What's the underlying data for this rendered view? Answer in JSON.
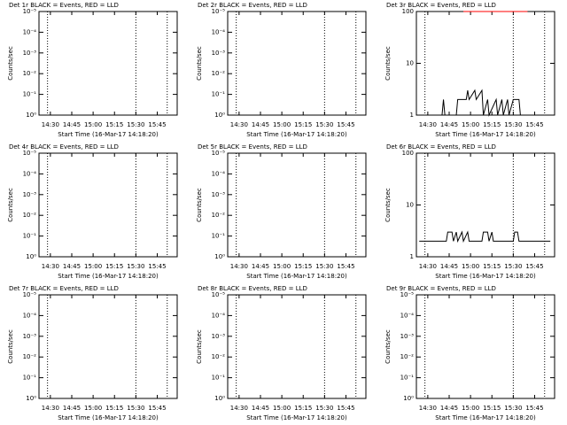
{
  "chart_data": [
    {
      "type": "line",
      "title": "Det 1r BLACK = Events, RED = LLD",
      "ylabel": "Counts/sec",
      "xlabel": "Start Time (16-Mar-17 14:18:20)",
      "xlim": [
        862,
        959
      ],
      "xticks": [
        {
          "value": 870,
          "label": "14:30"
        },
        {
          "value": 885,
          "label": "14:45"
        },
        {
          "value": 900,
          "label": "15:00"
        },
        {
          "value": 915,
          "label": "15:15"
        },
        {
          "value": 930,
          "label": "15:30"
        },
        {
          "value": 945,
          "label": "15:45"
        }
      ],
      "ylim": [
        1,
        1e-05
      ],
      "yticks": [
        {
          "value": 1,
          "label": "10⁰"
        },
        {
          "value": 0.1,
          "label": "10⁻¹"
        },
        {
          "value": 0.01,
          "label": "10⁻²"
        },
        {
          "value": 0.001,
          "label": "10⁻³"
        },
        {
          "value": 0.0001,
          "label": "10⁻⁴"
        },
        {
          "value": 1e-05,
          "label": "10⁻⁵"
        }
      ],
      "log_y": true,
      "markers": [
        868,
        930,
        952
      ],
      "series": []
    },
    {
      "type": "line",
      "title": "Det 2r BLACK = Events, RED = LLD",
      "ylabel": "Counts/sec",
      "xlabel": "Start Time (16-Mar-17 14:18:20)",
      "xlim": [
        862,
        959
      ],
      "xticks": [
        {
          "value": 870,
          "label": "14:30"
        },
        {
          "value": 885,
          "label": "14:45"
        },
        {
          "value": 900,
          "label": "15:00"
        },
        {
          "value": 915,
          "label": "15:15"
        },
        {
          "value": 930,
          "label": "15:30"
        },
        {
          "value": 945,
          "label": "15:45"
        }
      ],
      "ylim": [
        1,
        1e-05
      ],
      "yticks": [
        {
          "value": 1,
          "label": "10⁰"
        },
        {
          "value": 0.1,
          "label": "10⁻¹"
        },
        {
          "value": 0.01,
          "label": "10⁻²"
        },
        {
          "value": 0.001,
          "label": "10⁻³"
        },
        {
          "value": 0.0001,
          "label": "10⁻⁴"
        },
        {
          "value": 1e-05,
          "label": "10⁻⁵"
        }
      ],
      "log_y": true,
      "markers": [
        868,
        930,
        952
      ],
      "series": []
    },
    {
      "type": "line",
      "title": "Det 3r BLACK = Events, RED = LLD",
      "ylabel": "Counts/sec",
      "xlabel": "Start Time (16-Mar-17 14:18:20)",
      "xlim": [
        862,
        959
      ],
      "xticks": [
        {
          "value": 870,
          "label": "14:30"
        },
        {
          "value": 885,
          "label": "14:45"
        },
        {
          "value": 900,
          "label": "15:00"
        },
        {
          "value": 915,
          "label": "15:15"
        },
        {
          "value": 930,
          "label": "15:30"
        },
        {
          "value": 945,
          "label": "15:45"
        }
      ],
      "ylim": [
        1,
        100
      ],
      "yticks": [
        1,
        10,
        100
      ],
      "log_y": true,
      "markers": [
        868,
        930,
        952
      ],
      "series": [
        {
          "name": "LLD",
          "color": "#ff0000",
          "x": [
            895,
            940
          ],
          "values": [
            100,
            100
          ]
        },
        {
          "name": "Events",
          "color": "#000000",
          "x": [
            866,
            880,
            881,
            882,
            890,
            891,
            892,
            897,
            898,
            899,
            903,
            904,
            908,
            909,
            912,
            913,
            918,
            919,
            922,
            923,
            926,
            927,
            930,
            931,
            934,
            935,
            958
          ],
          "values": [
            1,
            1,
            2,
            1,
            1,
            2,
            2,
            2,
            3,
            2,
            3,
            2,
            3,
            1,
            2,
            1,
            2,
            1,
            2,
            1,
            2,
            1,
            2,
            2,
            2,
            1,
            1
          ]
        }
      ]
    },
    {
      "type": "line",
      "title": "Det 4r BLACK = Events, RED = LLD",
      "ylabel": "Counts/sec",
      "xlabel": "Start Time (16-Mar-17 14:18:20)",
      "xlim": [
        862,
        959
      ],
      "xticks": [
        {
          "value": 870,
          "label": "14:30"
        },
        {
          "value": 885,
          "label": "14:45"
        },
        {
          "value": 900,
          "label": "15:00"
        },
        {
          "value": 915,
          "label": "15:15"
        },
        {
          "value": 930,
          "label": "15:30"
        },
        {
          "value": 945,
          "label": "15:45"
        }
      ],
      "ylim": [
        1,
        1e-05
      ],
      "yticks": [
        {
          "value": 1,
          "label": "10⁰"
        },
        {
          "value": 0.1,
          "label": "10⁻¹"
        },
        {
          "value": 0.01,
          "label": "10⁻²"
        },
        {
          "value": 0.001,
          "label": "10⁻³"
        },
        {
          "value": 0.0001,
          "label": "10⁻⁴"
        },
        {
          "value": 1e-05,
          "label": "10⁻⁵"
        }
      ],
      "log_y": true,
      "markers": [
        868,
        930,
        952
      ],
      "series": []
    },
    {
      "type": "line",
      "title": "Det 5r BLACK = Events, RED = LLD",
      "ylabel": "Counts/sec",
      "xlabel": "Start Time (16-Mar-17 14:18:20)",
      "xlim": [
        862,
        959
      ],
      "xticks": [
        {
          "value": 870,
          "label": "14:30"
        },
        {
          "value": 885,
          "label": "14:45"
        },
        {
          "value": 900,
          "label": "15:00"
        },
        {
          "value": 915,
          "label": "15:15"
        },
        {
          "value": 930,
          "label": "15:30"
        },
        {
          "value": 945,
          "label": "15:45"
        }
      ],
      "ylim": [
        1,
        1e-05
      ],
      "yticks": [
        {
          "value": 1,
          "label": "10⁰"
        },
        {
          "value": 0.1,
          "label": "10⁻¹"
        },
        {
          "value": 0.01,
          "label": "10⁻²"
        },
        {
          "value": 0.001,
          "label": "10⁻³"
        },
        {
          "value": 0.0001,
          "label": "10⁻⁴"
        },
        {
          "value": 1e-05,
          "label": "10⁻⁵"
        }
      ],
      "log_y": true,
      "markers": [
        868,
        930,
        952
      ],
      "series": []
    },
    {
      "type": "line",
      "title": "Det 6r BLACK = Events, RED = LLD",
      "ylabel": "Counts/sec",
      "xlabel": "Start Time (16-Mar-17 14:18:20)",
      "xlim": [
        862,
        959
      ],
      "xticks": [
        {
          "value": 870,
          "label": "14:30"
        },
        {
          "value": 885,
          "label": "14:45"
        },
        {
          "value": 900,
          "label": "15:00"
        },
        {
          "value": 915,
          "label": "15:15"
        },
        {
          "value": 930,
          "label": "15:30"
        },
        {
          "value": 945,
          "label": "15:45"
        }
      ],
      "ylim": [
        1,
        100
      ],
      "yticks": [
        1,
        10,
        100
      ],
      "log_y": true,
      "markers": [
        868,
        930,
        952
      ],
      "series": [
        {
          "name": "Events",
          "color": "#000000",
          "x": [
            864,
            880,
            883,
            884,
            887,
            888,
            890,
            891,
            894,
            895,
            898,
            899,
            908,
            909,
            912,
            913,
            915,
            916,
            930,
            931,
            933,
            934,
            956
          ],
          "values": [
            2,
            2,
            2,
            3,
            3,
            2,
            3,
            2,
            3,
            2,
            3,
            2,
            2,
            3,
            3,
            2,
            3,
            2,
            2,
            3,
            3,
            2,
            2
          ]
        }
      ]
    },
    {
      "type": "line",
      "title": "Det 7r BLACK = Events, RED = LLD",
      "ylabel": "Counts/sec",
      "xlabel": "Start Time (16-Mar-17 14:18:20)",
      "xlim": [
        862,
        959
      ],
      "xticks": [
        {
          "value": 870,
          "label": "14:30"
        },
        {
          "value": 885,
          "label": "14:45"
        },
        {
          "value": 900,
          "label": "15:00"
        },
        {
          "value": 915,
          "label": "15:15"
        },
        {
          "value": 930,
          "label": "15:30"
        },
        {
          "value": 945,
          "label": "15:45"
        }
      ],
      "ylim": [
        1,
        1e-05
      ],
      "yticks": [
        {
          "value": 1,
          "label": "10⁰"
        },
        {
          "value": 0.1,
          "label": "10⁻¹"
        },
        {
          "value": 0.01,
          "label": "10⁻²"
        },
        {
          "value": 0.001,
          "label": "10⁻³"
        },
        {
          "value": 0.0001,
          "label": "10⁻⁴"
        },
        {
          "value": 1e-05,
          "label": "10⁻⁵"
        }
      ],
      "log_y": true,
      "markers": [
        868,
        930,
        952
      ],
      "series": []
    },
    {
      "type": "line",
      "title": "Det 8r BLACK = Events, RED = LLD",
      "ylabel": "Counts/sec",
      "xlabel": "Start Time (16-Mar-17 14:18:20)",
      "xlim": [
        862,
        959
      ],
      "xticks": [
        {
          "value": 870,
          "label": "14:30"
        },
        {
          "value": 885,
          "label": "14:45"
        },
        {
          "value": 900,
          "label": "15:00"
        },
        {
          "value": 915,
          "label": "15:15"
        },
        {
          "value": 930,
          "label": "15:30"
        },
        {
          "value": 945,
          "label": "15:45"
        }
      ],
      "ylim": [
        1,
        1e-05
      ],
      "yticks": [
        {
          "value": 1,
          "label": "10⁰"
        },
        {
          "value": 0.1,
          "label": "10⁻¹"
        },
        {
          "value": 0.01,
          "label": "10⁻²"
        },
        {
          "value": 0.001,
          "label": "10⁻³"
        },
        {
          "value": 0.0001,
          "label": "10⁻⁴"
        },
        {
          "value": 1e-05,
          "label": "10⁻⁵"
        }
      ],
      "log_y": true,
      "markers": [
        868,
        930,
        952
      ],
      "series": []
    },
    {
      "type": "line",
      "title": "Det 9r BLACK = Events, RED = LLD",
      "ylabel": "Counts/sec",
      "xlabel": "Start Time (16-Mar-17 14:18:20)",
      "xlim": [
        862,
        959
      ],
      "xticks": [
        {
          "value": 870,
          "label": "14:30"
        },
        {
          "value": 885,
          "label": "14:45"
        },
        {
          "value": 900,
          "label": "15:00"
        },
        {
          "value": 915,
          "label": "15:15"
        },
        {
          "value": 930,
          "label": "15:30"
        },
        {
          "value": 945,
          "label": "15:45"
        }
      ],
      "ylim": [
        1,
        1e-05
      ],
      "yticks": [
        {
          "value": 1,
          "label": "10⁰"
        },
        {
          "value": 0.1,
          "label": "10⁻¹"
        },
        {
          "value": 0.01,
          "label": "10⁻²"
        },
        {
          "value": 0.001,
          "label": "10⁻³"
        },
        {
          "value": 0.0001,
          "label": "10⁻⁴"
        },
        {
          "value": 1e-05,
          "label": "10⁻⁵"
        }
      ],
      "log_y": true,
      "markers": [
        868,
        930,
        952
      ],
      "series": []
    }
  ]
}
